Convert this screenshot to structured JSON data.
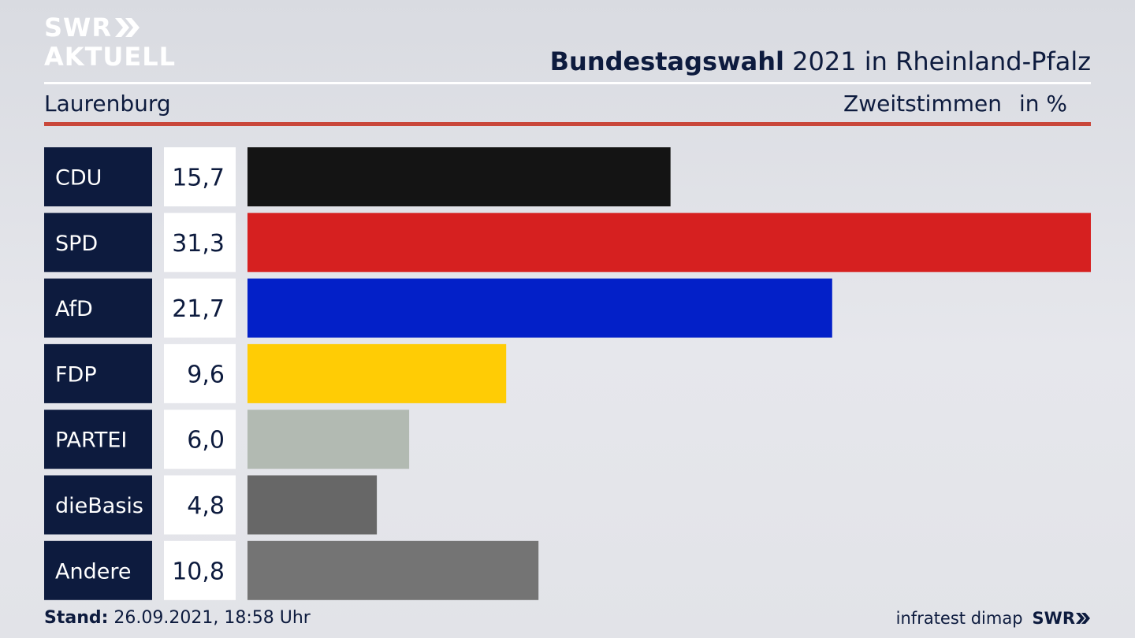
{
  "header": {
    "logo_line1": "SWR",
    "logo_line2": "AKTUELL",
    "title_bold": "Bundestagswahl",
    "title_rest": "2021 in Rheinland-Pfalz",
    "region": "Laurenburg",
    "measure": "Zweitstimmen",
    "unit": "in %"
  },
  "footer": {
    "stand_label": "Stand:",
    "stand_value": "26.09.2021, 18:58 Uhr",
    "source": "infratest dimap",
    "brand": "SWR"
  },
  "colors": {
    "label_box": "#0d1b3e",
    "accent_rule": "#c9473a"
  },
  "chart_data": {
    "type": "bar",
    "orientation": "horizontal",
    "categories": [
      "CDU",
      "SPD",
      "AfD",
      "FDP",
      "PARTEI",
      "dieBasis",
      "Andere"
    ],
    "values": [
      15.7,
      31.3,
      21.7,
      9.6,
      6.0,
      4.8,
      10.8
    ],
    "value_labels": [
      "15,7",
      "31,3",
      "21,7",
      "9,6",
      "6,0",
      "4,8",
      "10,8"
    ],
    "colors": [
      "#141414",
      "#d62020",
      "#0320c8",
      "#ffcc05",
      "#b2bab2",
      "#676767",
      "#747474"
    ],
    "xlim": [
      0,
      31.3
    ],
    "grid": false,
    "legend": "none"
  }
}
